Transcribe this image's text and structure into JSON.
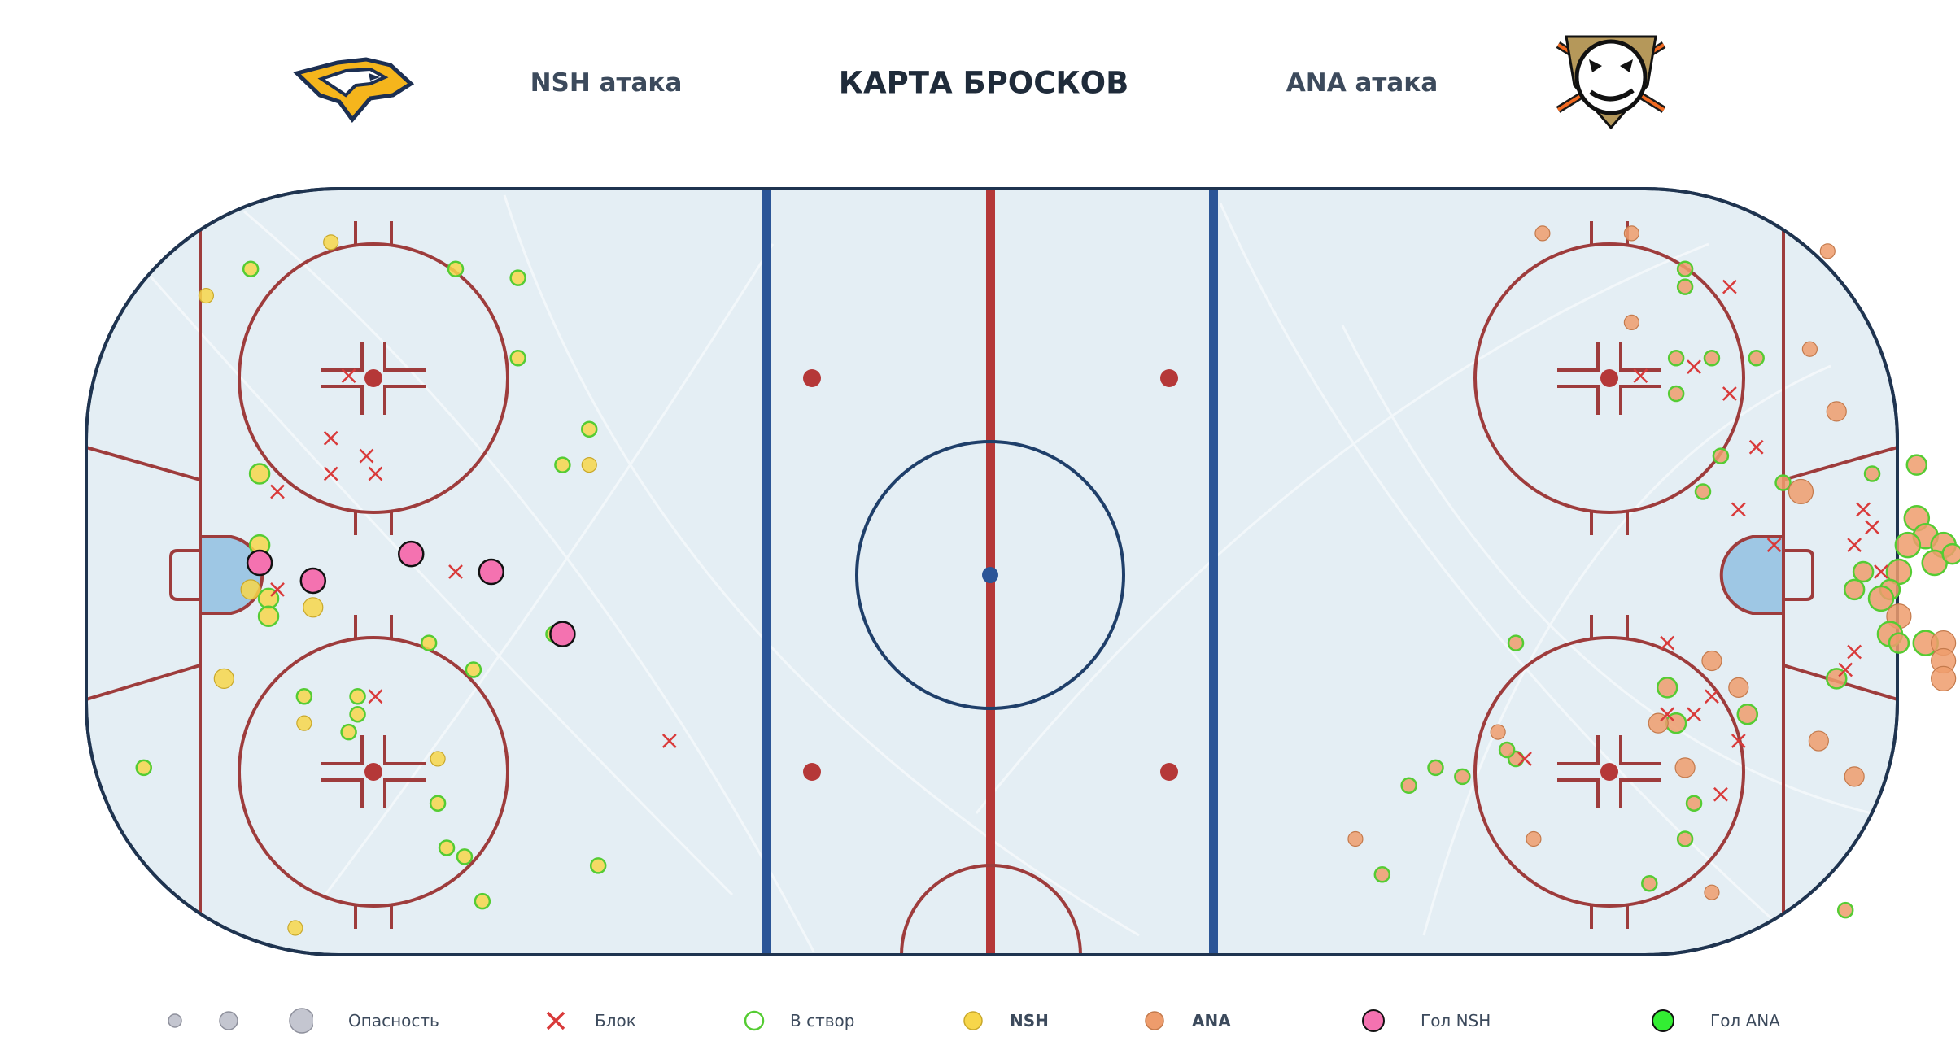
{
  "header": {
    "title": "КАРТА БРОСКОВ",
    "left_label": "NSH атака",
    "right_label": "ANA атака",
    "left_logo_icon": "nashville-predators-logo-icon",
    "right_logo_icon": "anaheim-ducks-logo-icon"
  },
  "colors": {
    "nsh": "#f7d64a",
    "ana": "#ee9c6c",
    "on_target_ring": "#55cc33",
    "block": "#d93a3a",
    "goal_nsh": "#f472b0",
    "goal_ana": "#33ee33",
    "rink_line_red": "#9e3c3c",
    "rink_line_blue": "#2b5597",
    "boards": "#1f3450"
  },
  "legend": {
    "danger_label": "Опасность",
    "block_label": "Блок",
    "on_target_label": "В створ",
    "nsh_label": "NSH",
    "ana_label": "ANA",
    "goal_nsh_label": "Гол NSH",
    "goal_ana_label": "Гол ANA"
  },
  "chart_data": {
    "type": "scatter",
    "title": "КАРТА БРОСКОВ",
    "xlim": [
      -100,
      100
    ],
    "ylim": [
      -42.5,
      42.5
    ],
    "grid": false,
    "legend_position": "bottom",
    "size_encoding": "Опасность",
    "series": [
      {
        "name": "NSH",
        "color": "#f7d64a",
        "points": [
          {
            "x": -88,
            "y": 31,
            "size": 1,
            "result": "miss"
          },
          {
            "x": -74,
            "y": 37,
            "size": 1,
            "result": "miss"
          },
          {
            "x": -82,
            "y": 11,
            "size": 2,
            "result": "on_target"
          },
          {
            "x": -82,
            "y": 3,
            "size": 2,
            "result": "on_target"
          },
          {
            "x": -83,
            "y": -2,
            "size": 2,
            "result": "miss"
          },
          {
            "x": -81,
            "y": -3,
            "size": 2,
            "result": "on_target"
          },
          {
            "x": -81,
            "y": -5,
            "size": 2,
            "result": "on_target"
          },
          {
            "x": -76,
            "y": -4,
            "size": 2,
            "result": "miss"
          },
          {
            "x": -86,
            "y": -12,
            "size": 2,
            "result": "miss"
          },
          {
            "x": -95,
            "y": -22,
            "size": 1,
            "result": "on_target"
          },
          {
            "x": -71,
            "y": -14,
            "size": 1,
            "result": "on_target"
          },
          {
            "x": -71,
            "y": -16,
            "size": 1,
            "result": "on_target"
          },
          {
            "x": -72,
            "y": -18,
            "size": 1,
            "result": "on_target"
          },
          {
            "x": -62,
            "y": -21,
            "size": 1,
            "result": "miss"
          },
          {
            "x": -62,
            "y": -26,
            "size": 1,
            "result": "on_target"
          },
          {
            "x": -61,
            "y": -31,
            "size": 1,
            "result": "on_target"
          },
          {
            "x": -63,
            "y": -8,
            "size": 1,
            "result": "on_target"
          },
          {
            "x": -59,
            "y": -32,
            "size": 1,
            "result": "on_target"
          },
          {
            "x": -58,
            "y": -11,
            "size": 1,
            "result": "on_target"
          },
          {
            "x": -57,
            "y": -37,
            "size": 1,
            "result": "on_target"
          },
          {
            "x": -53,
            "y": 33,
            "size": 1,
            "result": "on_target"
          },
          {
            "x": -53,
            "y": 24,
            "size": 1,
            "result": "on_target"
          },
          {
            "x": -48,
            "y": 12,
            "size": 1,
            "result": "on_target"
          },
          {
            "x": -45,
            "y": 16,
            "size": 1,
            "result": "on_target"
          },
          {
            "x": -45,
            "y": 12,
            "size": 1,
            "result": "miss"
          },
          {
            "x": -49,
            "y": -7,
            "size": 1,
            "result": "on_target"
          },
          {
            "x": -44,
            "y": -33,
            "size": 1,
            "result": "on_target"
          },
          {
            "x": -77,
            "y": -14,
            "size": 1,
            "result": "on_target"
          },
          {
            "x": -77,
            "y": -17,
            "size": 1,
            "result": "miss"
          },
          {
            "x": -78,
            "y": -40,
            "size": 1,
            "result": "miss"
          },
          {
            "x": -83,
            "y": 34,
            "size": 1,
            "result": "on_target"
          },
          {
            "x": -60,
            "y": 34,
            "size": 1,
            "result": "on_target"
          }
        ]
      },
      {
        "name": "ANA",
        "color": "#ee9c6c",
        "points": [
          {
            "x": 62,
            "y": 38,
            "size": 1,
            "result": "miss"
          },
          {
            "x": 72,
            "y": 38,
            "size": 1,
            "result": "miss"
          },
          {
            "x": 72,
            "y": 28,
            "size": 1,
            "result": "miss"
          },
          {
            "x": 94,
            "y": 36,
            "size": 1,
            "result": "miss"
          },
          {
            "x": 92,
            "y": 25,
            "size": 1,
            "result": "miss"
          },
          {
            "x": 78,
            "y": 34,
            "size": 1,
            "result": "on_target"
          },
          {
            "x": 78,
            "y": 32,
            "size": 1,
            "result": "on_target"
          },
          {
            "x": 77,
            "y": 24,
            "size": 1,
            "result": "on_target"
          },
          {
            "x": 77,
            "y": 20,
            "size": 1,
            "result": "on_target"
          },
          {
            "x": 86,
            "y": 24,
            "size": 1,
            "result": "on_target"
          },
          {
            "x": 81,
            "y": 24,
            "size": 1,
            "result": "on_target"
          },
          {
            "x": 95,
            "y": 18,
            "size": 2,
            "result": "miss"
          },
          {
            "x": 82,
            "y": 13,
            "size": 1,
            "result": "on_target"
          },
          {
            "x": 80,
            "y": 9,
            "size": 1,
            "result": "on_target"
          },
          {
            "x": 89,
            "y": 10,
            "size": 1,
            "result": "on_target"
          },
          {
            "x": 91,
            "y": 9,
            "size": 3,
            "result": "miss"
          },
          {
            "x": 99,
            "y": 11,
            "size": 1,
            "result": "on_target"
          },
          {
            "x": 104,
            "y": 12,
            "size": 2,
            "result": "on_target"
          },
          {
            "x": 104,
            "y": 6,
            "size": 3,
            "result": "on_target"
          },
          {
            "x": 105,
            "y": 4,
            "size": 3,
            "result": "on_target"
          },
          {
            "x": 107,
            "y": 3,
            "size": 3,
            "result": "on_target"
          },
          {
            "x": 106,
            "y": 1,
            "size": 3,
            "result": "on_target"
          },
          {
            "x": 108,
            "y": 2,
            "size": 2,
            "result": "on_target"
          },
          {
            "x": 102,
            "y": 0,
            "size": 3,
            "result": "on_target"
          },
          {
            "x": 103,
            "y": 3,
            "size": 3,
            "result": "on_target"
          },
          {
            "x": 101,
            "y": -2,
            "size": 2,
            "result": "on_target"
          },
          {
            "x": 98,
            "y": 0,
            "size": 2,
            "result": "on_target"
          },
          {
            "x": 100,
            "y": -3,
            "size": 3,
            "result": "on_target"
          },
          {
            "x": 102,
            "y": -5,
            "size": 3,
            "result": "miss"
          },
          {
            "x": 101,
            "y": -7,
            "size": 3,
            "result": "on_target"
          },
          {
            "x": 102,
            "y": -8,
            "size": 2,
            "result": "on_target"
          },
          {
            "x": 105,
            "y": -8,
            "size": 3,
            "result": "on_target"
          },
          {
            "x": 107,
            "y": -8,
            "size": 3,
            "result": "miss"
          },
          {
            "x": 107,
            "y": -10,
            "size": 3,
            "result": "miss"
          },
          {
            "x": 107,
            "y": -12,
            "size": 3,
            "result": "miss"
          },
          {
            "x": 95,
            "y": -12,
            "size": 2,
            "result": "on_target"
          },
          {
            "x": 97,
            "y": -2,
            "size": 2,
            "result": "on_target"
          },
          {
            "x": 93,
            "y": -19,
            "size": 2,
            "result": "miss"
          },
          {
            "x": 97,
            "y": -23,
            "size": 2,
            "result": "miss"
          },
          {
            "x": 81,
            "y": -10,
            "size": 2,
            "result": "miss"
          },
          {
            "x": 84,
            "y": -13,
            "size": 2,
            "result": "miss"
          },
          {
            "x": 85,
            "y": -16,
            "size": 2,
            "result": "on_target"
          },
          {
            "x": 76,
            "y": -13,
            "size": 2,
            "result": "on_target"
          },
          {
            "x": 77,
            "y": -17,
            "size": 2,
            "result": "on_target"
          },
          {
            "x": 75,
            "y": -17,
            "size": 2,
            "result": "miss"
          },
          {
            "x": 78,
            "y": -22,
            "size": 2,
            "result": "miss"
          },
          {
            "x": 79,
            "y": -26,
            "size": 1,
            "result": "on_target"
          },
          {
            "x": 78,
            "y": -30,
            "size": 1,
            "result": "on_target"
          },
          {
            "x": 74,
            "y": -35,
            "size": 1,
            "result": "on_target"
          },
          {
            "x": 81,
            "y": -36,
            "size": 1,
            "result": "miss"
          },
          {
            "x": 61,
            "y": -30,
            "size": 1,
            "result": "miss"
          },
          {
            "x": 59,
            "y": -21,
            "size": 1,
            "result": "on_target"
          },
          {
            "x": 58,
            "y": -20,
            "size": 1,
            "result": "on_target"
          },
          {
            "x": 57,
            "y": -18,
            "size": 1,
            "result": "miss"
          },
          {
            "x": 53,
            "y": -23,
            "size": 1,
            "result": "on_target"
          },
          {
            "x": 50,
            "y": -22,
            "size": 1,
            "result": "on_target"
          },
          {
            "x": 47,
            "y": -24,
            "size": 1,
            "result": "on_target"
          },
          {
            "x": 44,
            "y": -34,
            "size": 1,
            "result": "on_target"
          },
          {
            "x": 41,
            "y": -30,
            "size": 1,
            "result": "miss"
          },
          {
            "x": 59,
            "y": -8,
            "size": 1,
            "result": "on_target"
          },
          {
            "x": 96,
            "y": -38,
            "size": 1,
            "result": "on_target"
          }
        ]
      },
      {
        "name": "Гол NSH",
        "color": "#f472b0",
        "points": [
          {
            "x": -82,
            "y": 1,
            "size": 3
          },
          {
            "x": -76,
            "y": -1,
            "size": 3
          },
          {
            "x": -65,
            "y": 2,
            "size": 3
          },
          {
            "x": -56,
            "y": 0,
            "size": 3
          },
          {
            "x": -48,
            "y": -7,
            "size": 3
          }
        ]
      },
      {
        "name": "Гол ANA",
        "color": "#33ee33",
        "points": []
      },
      {
        "name": "Блок",
        "color": "#d93a3a",
        "points": [
          {
            "x": -72,
            "y": 22
          },
          {
            "x": -74,
            "y": 15
          },
          {
            "x": -74,
            "y": 11
          },
          {
            "x": -70,
            "y": 13
          },
          {
            "x": -69,
            "y": 11
          },
          {
            "x": -80,
            "y": 9
          },
          {
            "x": -80,
            "y": -2
          },
          {
            "x": -60,
            "y": 0
          },
          {
            "x": -69,
            "y": -14
          },
          {
            "x": -36,
            "y": -19
          },
          {
            "x": 79,
            "y": 23
          },
          {
            "x": 83,
            "y": 20
          },
          {
            "x": 83,
            "y": 32
          },
          {
            "x": 73,
            "y": 22
          },
          {
            "x": 86,
            "y": 14
          },
          {
            "x": 84,
            "y": 7
          },
          {
            "x": 88,
            "y": 3
          },
          {
            "x": 98,
            "y": 7
          },
          {
            "x": 99,
            "y": 5
          },
          {
            "x": 97,
            "y": 3
          },
          {
            "x": 100,
            "y": 0
          },
          {
            "x": 97,
            "y": -9
          },
          {
            "x": 96,
            "y": -11
          },
          {
            "x": 76,
            "y": -8
          },
          {
            "x": 81,
            "y": -14
          },
          {
            "x": 79,
            "y": -16
          },
          {
            "x": 76,
            "y": -16
          },
          {
            "x": 84,
            "y": -19
          },
          {
            "x": 82,
            "y": -25
          },
          {
            "x": 60,
            "y": -21
          }
        ]
      }
    ]
  }
}
